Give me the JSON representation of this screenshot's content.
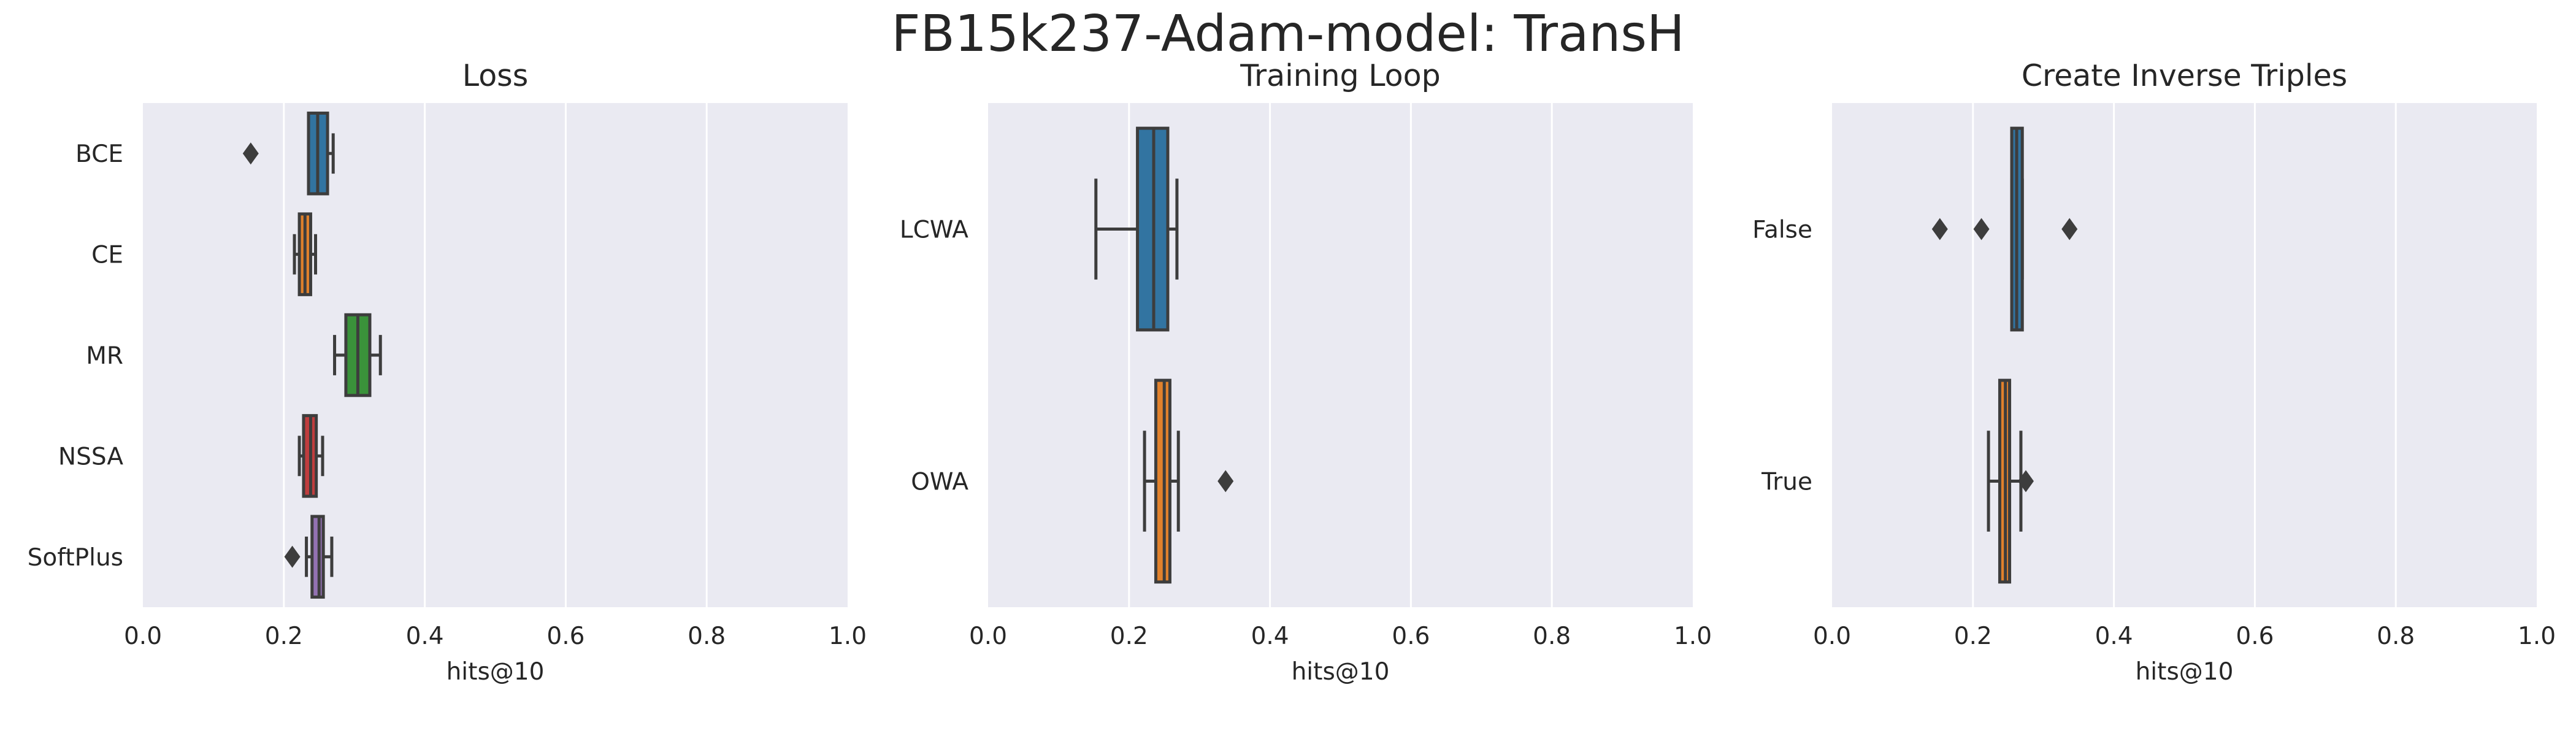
{
  "title": "FB15k237-Adam-model: TransH",
  "chart_data": [
    {
      "type": "boxplot",
      "orientation": "horizontal",
      "title": "Loss",
      "xlabel": "hits@10",
      "ylabel": "",
      "xlim": [
        0,
        1
      ],
      "xticks": [
        "0.0",
        "0.2",
        "0.4",
        "0.6",
        "0.8",
        "1.0"
      ],
      "grid": true,
      "categories": [
        "BCE",
        "CE",
        "MR",
        "NSSA",
        "SoftPlus"
      ],
      "boxes": [
        {
          "category": "BCE",
          "color": "#3274a1",
          "whisker_low": 0.235,
          "q1": 0.235,
          "median": 0.248,
          "q3": 0.262,
          "whisker_high": 0.27,
          "outliers": [
            0.153
          ]
        },
        {
          "category": "CE",
          "color": "#e1812c",
          "whisker_low": 0.215,
          "q1": 0.222,
          "median": 0.23,
          "q3": 0.238,
          "whisker_high": 0.245,
          "outliers": []
        },
        {
          "category": "MR",
          "color": "#3a923a",
          "whisker_low": 0.272,
          "q1": 0.288,
          "median": 0.305,
          "q3": 0.322,
          "whisker_high": 0.337,
          "outliers": []
        },
        {
          "category": "NSSA",
          "color": "#c03d3e",
          "whisker_low": 0.222,
          "q1": 0.228,
          "median": 0.238,
          "q3": 0.246,
          "whisker_high": 0.255,
          "outliers": []
        },
        {
          "category": "SoftPlus",
          "color": "#9372b2",
          "whisker_low": 0.232,
          "q1": 0.24,
          "median": 0.25,
          "q3": 0.256,
          "whisker_high": 0.268,
          "outliers": [
            0.212
          ]
        }
      ]
    },
    {
      "type": "boxplot",
      "orientation": "horizontal",
      "title": "Training Loop",
      "xlabel": "hits@10",
      "ylabel": "",
      "xlim": [
        0,
        1
      ],
      "xticks": [
        "0.0",
        "0.2",
        "0.4",
        "0.6",
        "0.8",
        "1.0"
      ],
      "grid": true,
      "categories": [
        "LCWA",
        "OWA"
      ],
      "boxes": [
        {
          "category": "LCWA",
          "color": "#3274a1",
          "whisker_low": 0.153,
          "q1": 0.212,
          "median": 0.235,
          "q3": 0.255,
          "whisker_high": 0.268,
          "outliers": []
        },
        {
          "category": "OWA",
          "color": "#e1812c",
          "whisker_low": 0.222,
          "q1": 0.238,
          "median": 0.25,
          "q3": 0.258,
          "whisker_high": 0.27,
          "outliers": [
            0.337
          ]
        }
      ]
    },
    {
      "type": "boxplot",
      "orientation": "horizontal",
      "title": "Create Inverse Triples",
      "xlabel": "hits@10",
      "ylabel": "",
      "xlim": [
        0,
        1
      ],
      "xticks": [
        "0.0",
        "0.2",
        "0.4",
        "0.6",
        "0.8",
        "1.0"
      ],
      "grid": true,
      "categories": [
        "False",
        "True"
      ],
      "boxes": [
        {
          "category": "False",
          "color": "#3274a1",
          "whisker_low": 0.255,
          "q1": 0.255,
          "median": 0.262,
          "q3": 0.27,
          "whisker_high": 0.27,
          "outliers": [
            0.153,
            0.212,
            0.337
          ]
        },
        {
          "category": "True",
          "color": "#e1812c",
          "whisker_low": 0.222,
          "q1": 0.238,
          "median": 0.246,
          "q3": 0.252,
          "whisker_high": 0.268,
          "outliers": [
            0.275
          ]
        }
      ]
    }
  ]
}
